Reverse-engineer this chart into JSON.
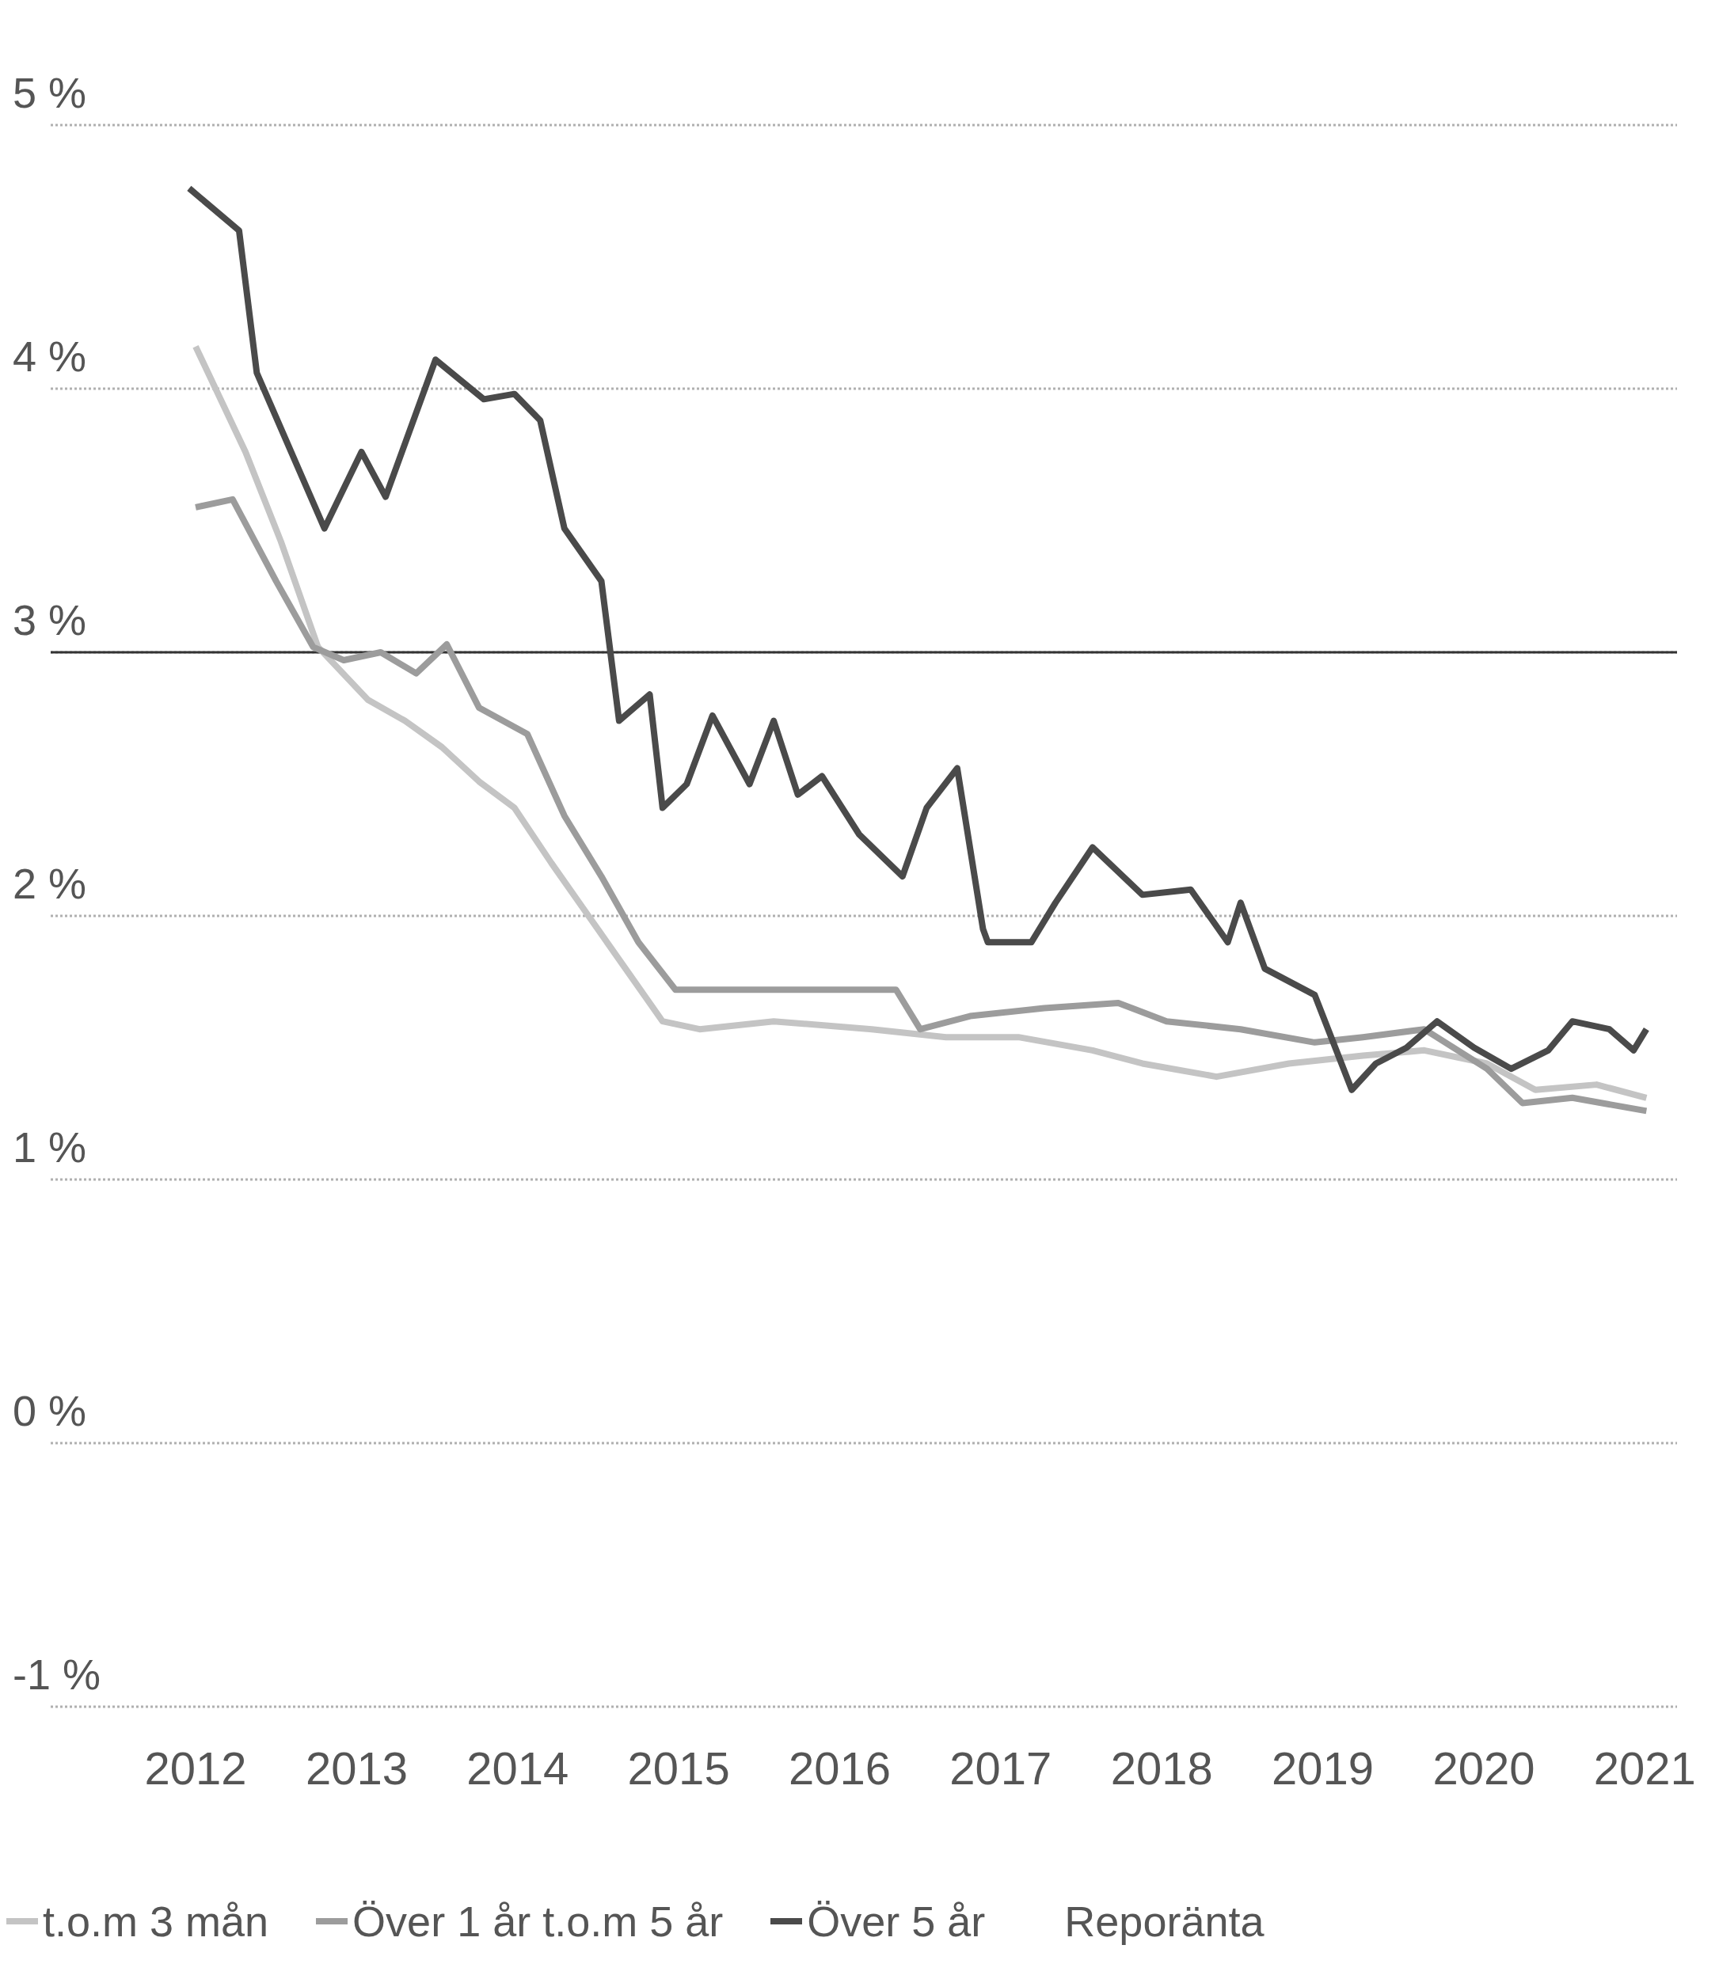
{
  "chart_data": {
    "type": "line",
    "xlim": [
      2011.1,
      2021.2
    ],
    "xticks": [
      2012,
      2013,
      2014,
      2015,
      2016,
      2017,
      2018,
      2019,
      2020,
      2021
    ],
    "ylim": [
      -1,
      5
    ],
    "yticks": [
      {
        "value": -1,
        "label": "-1 %"
      },
      {
        "value": 0,
        "label": "0 %"
      },
      {
        "value": 1,
        "label": "1 %"
      },
      {
        "value": 2,
        "label": "2 %"
      },
      {
        "value": 3,
        "label": "3 %"
      },
      {
        "value": 4,
        "label": "4 %"
      },
      {
        "value": 5,
        "label": "5 %"
      }
    ],
    "grid": "y",
    "legend": "bottom left",
    "ref_lines": [
      {
        "axis": "y",
        "value": 3,
        "color": "#333333"
      }
    ],
    "series": [
      {
        "name": "t.o.m 3 mån",
        "color": "#c4c4c4",
        "x": [
          2012,
          2012.31,
          2012.53,
          2012.76,
          2013.07,
          2013.3,
          2013.53,
          2013.76,
          2013.98,
          2014.21,
          2014.44,
          2014.67,
          2014.9,
          2015.13,
          2015.59,
          2016.2,
          2016.66,
          2017.11,
          2017.57,
          2017.88,
          2018.34,
          2018.79,
          2019.25,
          2019.63,
          2020.02,
          2020.32,
          2020.7,
          2021.01
        ],
        "values": [
          4.16,
          3.76,
          3.42,
          3.02,
          2.82,
          2.74,
          2.64,
          2.51,
          2.41,
          2.2,
          2.0,
          1.8,
          1.6,
          1.57,
          1.6,
          1.57,
          1.54,
          1.54,
          1.49,
          1.44,
          1.39,
          1.44,
          1.47,
          1.49,
          1.44,
          1.34,
          1.36,
          1.31
        ]
      },
      {
        "name": "Över 1 år t.o.m 5 år",
        "color": "#9c9c9c",
        "x": [
          2012,
          2012.23,
          2012.5,
          2012.73,
          2012.92,
          2013.15,
          2013.37,
          2013.56,
          2013.76,
          2014.06,
          2014.29,
          2014.52,
          2014.75,
          2014.98,
          2015.21,
          2015.59,
          2016.35,
          2016.5,
          2016.81,
          2017.27,
          2017.73,
          2018.03,
          2018.49,
          2018.95,
          2019.25,
          2019.63,
          2020.02,
          2020.24,
          2020.55,
          2021.01
        ],
        "values": [
          3.55,
          3.58,
          3.27,
          3.02,
          2.97,
          3.0,
          2.92,
          3.03,
          2.79,
          2.69,
          2.38,
          2.15,
          1.9,
          1.72,
          1.72,
          1.72,
          1.72,
          1.57,
          1.62,
          1.65,
          1.67,
          1.6,
          1.57,
          1.52,
          1.54,
          1.57,
          1.42,
          1.29,
          1.31,
          1.26
        ]
      },
      {
        "name": "Över 5 år",
        "color": "#4a4a4a",
        "x": [
          2011.96,
          2012.27,
          2012.38,
          2012.8,
          2013.03,
          2013.18,
          2013.49,
          2013.79,
          2013.98,
          2014.14,
          2014.29,
          2014.52,
          2014.63,
          2014.82,
          2014.9,
          2015.05,
          2015.21,
          2015.44,
          2015.59,
          2015.74,
          2015.89,
          2016.12,
          2016.39,
          2016.54,
          2016.73,
          2016.89,
          2016.92,
          2017.19,
          2017.34,
          2017.57,
          2017.88,
          2018.18,
          2018.41,
          2018.49,
          2018.64,
          2018.95,
          2019.18,
          2019.33,
          2019.52,
          2019.71,
          2019.94,
          2020.17,
          2020.4,
          2020.55,
          2020.78,
          2020.93,
          2021.01
        ],
        "values": [
          4.76,
          4.6,
          4.06,
          3.47,
          3.76,
          3.59,
          4.11,
          3.96,
          3.98,
          3.88,
          3.47,
          3.27,
          2.74,
          2.84,
          2.41,
          2.5,
          2.76,
          2.5,
          2.74,
          2.46,
          2.53,
          2.31,
          2.15,
          2.41,
          2.56,
          1.95,
          1.9,
          1.9,
          2.05,
          2.26,
          2.08,
          2.1,
          1.9,
          2.05,
          1.8,
          1.7,
          1.34,
          1.44,
          1.5,
          1.6,
          1.5,
          1.42,
          1.49,
          1.6,
          1.57,
          1.49,
          1.57
        ]
      }
    ],
    "annotations": [
      "Reporänta"
    ]
  }
}
